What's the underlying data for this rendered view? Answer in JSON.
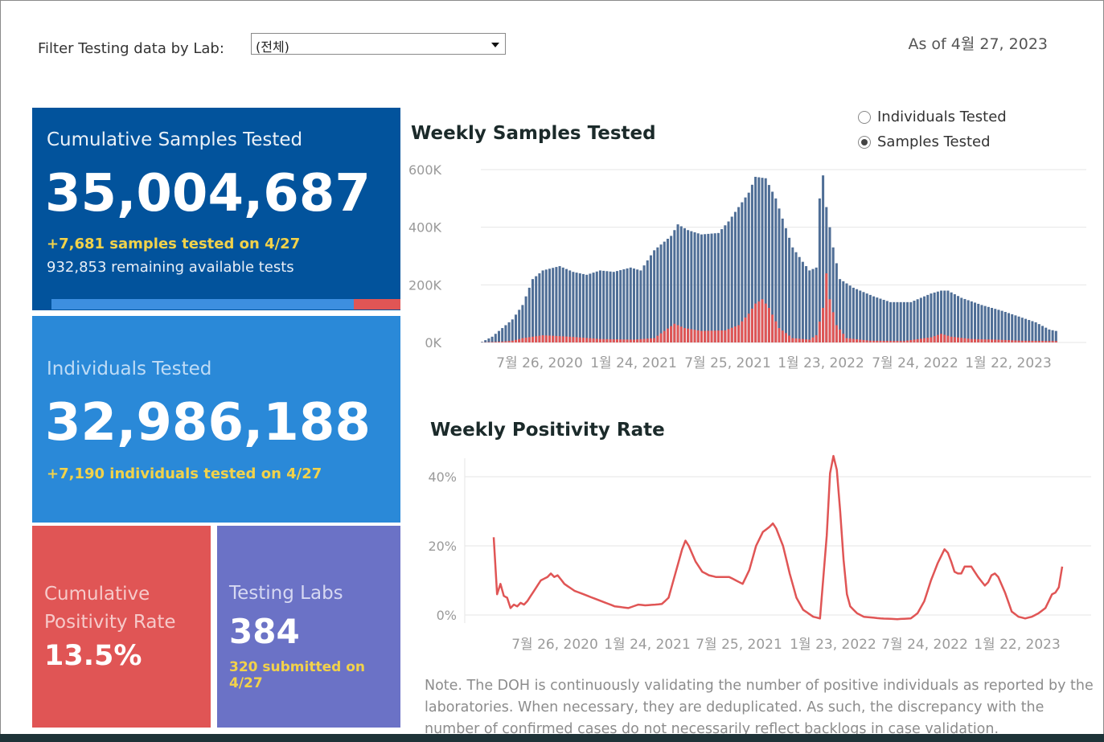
{
  "filter": {
    "label": "Filter Testing data by Lab:",
    "selected": "(전체)"
  },
  "as_of": "As of 4월 27, 2023",
  "tiles": {
    "samples": {
      "label": "Cumulative Samples Tested",
      "value": "35,004,687",
      "delta": "+7,681 samples tested on 4/27",
      "remaining": "932,853 remaining available tests",
      "used_fraction": 0.874
    },
    "individuals": {
      "label": "Individuals Tested",
      "value": "32,986,188",
      "delta": "+7,190  individuals  tested on 4/27"
    },
    "positivity": {
      "label_line1": "Cumulative",
      "label_line2": "Positivity Rate",
      "value": "13.5%"
    },
    "labs": {
      "label": "Testing Labs",
      "value": "384",
      "delta": "320 submitted on 4/27"
    }
  },
  "weekly_samples": {
    "title": "Weekly Samples Tested",
    "toggle": [
      {
        "label": "Individuals Tested",
        "selected": false
      },
      {
        "label": "Samples Tested",
        "selected": true
      }
    ]
  },
  "weekly_positivity": {
    "title": "Weekly Positivity Rate"
  },
  "note": "Note. The DOH is continuously validating the number of positive individuals as reported by the laboratories. When necessary, they are deduplicated. As such, the discrepancy with the number of confirmed cases do not necessarily reflect backlogs in case validation.",
  "colors": {
    "samples_bar": "#4f6e96",
    "positive_bar": "#e05555",
    "tile_blue_dark": "#02539c",
    "tile_blue": "#2a89d8",
    "tile_red": "#e05555",
    "tile_purple": "#6b72c6"
  },
  "chart_data": [
    {
      "type": "bar",
      "title": "Weekly Samples Tested",
      "y_ticks": [
        "600K",
        "400K",
        "200K",
        "0K"
      ],
      "x_ticks": [
        "7월 26, 2020",
        "1월 24, 2021",
        "7월 25, 2021",
        "1월 23, 2022",
        "7월 24, 2022",
        "1월 22, 2023"
      ],
      "ylim": [
        0,
        650000
      ],
      "anchors_total": [
        [
          0,
          2000
        ],
        [
          3,
          20000
        ],
        [
          6,
          50000
        ],
        [
          9,
          80000
        ],
        [
          12,
          130000
        ],
        [
          15,
          220000
        ],
        [
          18,
          250000
        ],
        [
          23,
          265000
        ],
        [
          27,
          245000
        ],
        [
          31,
          235000
        ],
        [
          35,
          250000
        ],
        [
          39,
          245000
        ],
        [
          44,
          260000
        ],
        [
          47,
          250000
        ],
        [
          51,
          320000
        ],
        [
          56,
          370000
        ],
        [
          58,
          410000
        ],
        [
          61,
          390000
        ],
        [
          65,
          375000
        ],
        [
          70,
          380000
        ],
        [
          73,
          420000
        ],
        [
          76,
          470000
        ],
        [
          79,
          520000
        ],
        [
          81,
          575000
        ],
        [
          84,
          570000
        ],
        [
          87,
          500000
        ],
        [
          89,
          430000
        ],
        [
          92,
          330000
        ],
        [
          95,
          280000
        ],
        [
          97,
          250000
        ],
        [
          99,
          260000
        ],
        [
          100,
          500000
        ],
        [
          101,
          580000
        ],
        [
          102,
          470000
        ],
        [
          104,
          330000
        ],
        [
          106,
          220000
        ],
        [
          110,
          190000
        ],
        [
          116,
          160000
        ],
        [
          121,
          140000
        ],
        [
          127,
          140000
        ],
        [
          133,
          170000
        ],
        [
          136,
          180000
        ],
        [
          138,
          180000
        ],
        [
          142,
          155000
        ],
        [
          148,
          130000
        ],
        [
          154,
          110000
        ],
        [
          159,
          90000
        ],
        [
          164,
          70000
        ],
        [
          168,
          45000
        ],
        [
          170,
          40000
        ]
      ],
      "anchors_positive": [
        [
          0,
          300
        ],
        [
          6,
          3000
        ],
        [
          9,
          6000
        ],
        [
          12,
          15000
        ],
        [
          18,
          25000
        ],
        [
          26,
          20000
        ],
        [
          35,
          12000
        ],
        [
          45,
          10000
        ],
        [
          51,
          15000
        ],
        [
          54,
          40000
        ],
        [
          57,
          65000
        ],
        [
          60,
          50000
        ],
        [
          65,
          40000
        ],
        [
          72,
          42000
        ],
        [
          76,
          60000
        ],
        [
          79,
          100000
        ],
        [
          81,
          135000
        ],
        [
          83,
          150000
        ],
        [
          85,
          120000
        ],
        [
          88,
          50000
        ],
        [
          92,
          15000
        ],
        [
          97,
          10000
        ],
        [
          99,
          25000
        ],
        [
          101,
          120000
        ],
        [
          102,
          240000
        ],
        [
          103,
          150000
        ],
        [
          105,
          60000
        ],
        [
          108,
          15000
        ],
        [
          115,
          6000
        ],
        [
          125,
          5000
        ],
        [
          133,
          18000
        ],
        [
          136,
          30000
        ],
        [
          139,
          20000
        ],
        [
          145,
          12000
        ],
        [
          152,
          10000
        ],
        [
          160,
          6000
        ],
        [
          170,
          5000
        ]
      ],
      "n_weeks": 171
    },
    {
      "type": "line",
      "title": "Weekly Positivity Rate",
      "y_ticks": [
        "40%",
        "20%",
        "0%"
      ],
      "x_ticks": [
        "7월 26, 2020",
        "1월 24, 2021",
        "7월 25, 2021",
        "1월 23, 2022",
        "7월 24, 2022",
        "1월 22, 2023"
      ],
      "ylim": [
        -3,
        47
      ],
      "anchors_pct": [
        [
          0,
          22.5
        ],
        [
          1,
          6
        ],
        [
          2,
          9
        ],
        [
          3,
          5.5
        ],
        [
          4,
          5
        ],
        [
          5,
          2
        ],
        [
          6,
          3
        ],
        [
          7,
          2.5
        ],
        [
          8,
          3.5
        ],
        [
          9,
          3
        ],
        [
          10,
          4
        ],
        [
          12,
          7
        ],
        [
          14,
          10
        ],
        [
          16,
          11
        ],
        [
          17,
          12
        ],
        [
          18,
          11
        ],
        [
          19,
          11.5
        ],
        [
          21,
          9
        ],
        [
          24,
          7
        ],
        [
          28,
          5.5
        ],
        [
          32,
          4
        ],
        [
          36,
          2.5
        ],
        [
          40,
          2
        ],
        [
          43,
          3
        ],
        [
          45,
          2.8
        ],
        [
          48,
          3
        ],
        [
          50,
          3.2
        ],
        [
          52,
          5
        ],
        [
          54,
          12
        ],
        [
          56,
          19
        ],
        [
          57,
          21.5
        ],
        [
          58,
          20
        ],
        [
          60,
          15.5
        ],
        [
          62,
          12.5
        ],
        [
          64,
          11.5
        ],
        [
          66,
          11
        ],
        [
          70,
          11
        ],
        [
          74,
          9
        ],
        [
          76,
          13
        ],
        [
          78,
          20
        ],
        [
          80,
          24
        ],
        [
          82,
          25.5
        ],
        [
          83,
          26.5
        ],
        [
          84,
          25
        ],
        [
          86,
          20
        ],
        [
          88,
          12
        ],
        [
          90,
          5
        ],
        [
          92,
          1.5
        ],
        [
          95,
          -0.5
        ],
        [
          97,
          -1
        ],
        [
          99,
          23
        ],
        [
          100,
          41
        ],
        [
          101,
          46
        ],
        [
          102,
          42
        ],
        [
          103,
          30
        ],
        [
          104,
          16
        ],
        [
          105,
          6
        ],
        [
          106,
          2.5
        ],
        [
          108,
          0.5
        ],
        [
          110,
          -0.5
        ],
        [
          115,
          -1
        ],
        [
          120,
          -1.2
        ],
        [
          124,
          -1
        ],
        [
          126,
          0.5
        ],
        [
          128,
          4
        ],
        [
          130,
          10
        ],
        [
          132,
          15
        ],
        [
          134,
          19
        ],
        [
          135,
          18
        ],
        [
          136,
          15.5
        ],
        [
          137,
          12.5
        ],
        [
          138,
          12
        ],
        [
          139,
          12
        ],
        [
          140,
          14
        ],
        [
          142,
          14
        ],
        [
          144,
          11
        ],
        [
          146,
          8.5
        ],
        [
          147,
          9.5
        ],
        [
          148,
          11.5
        ],
        [
          149,
          12
        ],
        [
          150,
          11
        ],
        [
          152,
          6.5
        ],
        [
          154,
          1
        ],
        [
          156,
          -0.5
        ],
        [
          158,
          -1
        ],
        [
          160,
          -0.5
        ],
        [
          162,
          0.5
        ],
        [
          164,
          2
        ],
        [
          165,
          4
        ],
        [
          166,
          6
        ],
        [
          167,
          6.5
        ],
        [
          168,
          8
        ],
        [
          169,
          14
        ]
      ],
      "n_weeks": 170
    }
  ]
}
